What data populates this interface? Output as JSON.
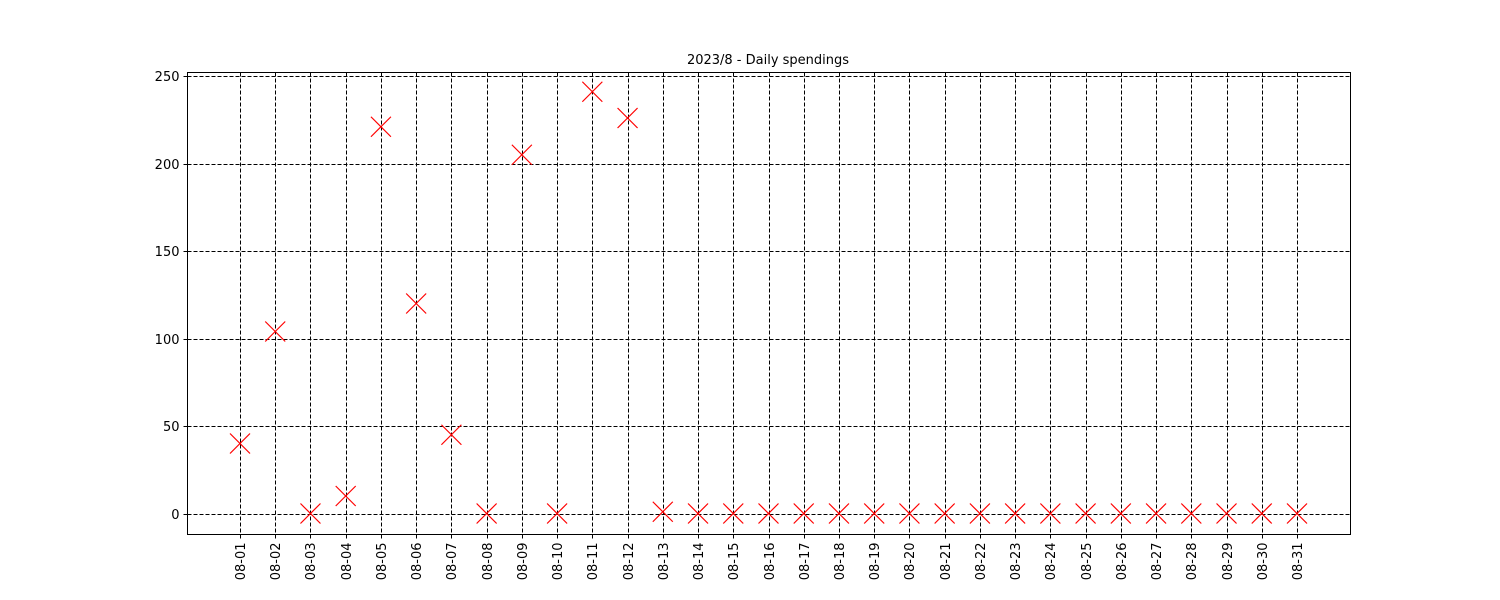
{
  "chart_data": {
    "type": "scatter",
    "title": "2023/8 - Daily spendings",
    "xlabel": "",
    "ylabel": "",
    "categories": [
      "08-01",
      "08-02",
      "08-03",
      "08-04",
      "08-05",
      "08-06",
      "08-07",
      "08-08",
      "08-09",
      "08-10",
      "08-11",
      "08-12",
      "08-13",
      "08-14",
      "08-15",
      "08-16",
      "08-17",
      "08-18",
      "08-19",
      "08-20",
      "08-21",
      "08-22",
      "08-23",
      "08-24",
      "08-25",
      "08-26",
      "08-27",
      "08-28",
      "08-29",
      "08-30",
      "08-31"
    ],
    "values": [
      40,
      104,
      0,
      10,
      221,
      120,
      45,
      0,
      205,
      0,
      241,
      226,
      1,
      0,
      0,
      0,
      0,
      0,
      0,
      0,
      0,
      0,
      0,
      0,
      0,
      0,
      0,
      0,
      0,
      0,
      0
    ],
    "ylim": [
      -12,
      252
    ],
    "yticks": [
      0,
      50,
      100,
      150,
      200,
      250
    ],
    "ytick_labels": [
      "0",
      "50",
      "100",
      "150",
      "200",
      "250"
    ],
    "grid": true,
    "grid_style": "dashed",
    "marker": "x",
    "marker_color": "#ff0000",
    "grid_color": "#000000"
  }
}
